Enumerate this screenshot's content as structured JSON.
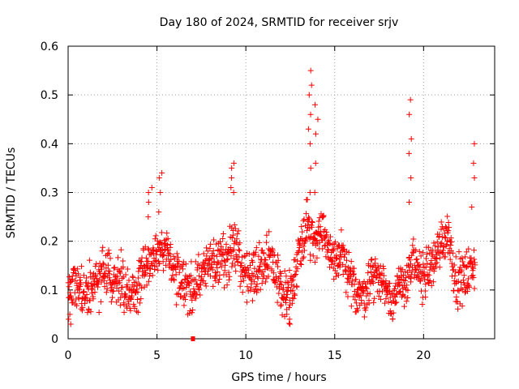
{
  "chart_data": {
    "type": "scatter",
    "title": "Day 180 of 2024, SRMTID for receiver srjv",
    "xlabel": "GPS time / hours",
    "ylabel": "SRMTID / TECUs",
    "xlim": [
      0,
      24
    ],
    "ylim": [
      0,
      0.6
    ],
    "xticks": [
      0,
      5,
      10,
      15,
      20
    ],
    "xtick_labels": [
      "0",
      "5",
      "10",
      "15",
      "20"
    ],
    "yticks": [
      0,
      0.1,
      0.2,
      0.3,
      0.4,
      0.5,
      0.6
    ],
    "ytick_labels": [
      "0",
      "0.1",
      "0.2",
      "0.3",
      "0.4",
      "0.5",
      "0.6"
    ],
    "grid": true,
    "marker": "+",
    "color": "#ff0000",
    "series": [
      {
        "name": "SRMTID",
        "profile_x": [
          0.0,
          0.3,
          0.8,
          1.2,
          1.6,
          2.0,
          2.5,
          3.0,
          3.4,
          3.8,
          4.2,
          4.6,
          5.0,
          5.4,
          5.8,
          6.2,
          6.6,
          7.0,
          7.4,
          7.8,
          8.2,
          8.6,
          9.0,
          9.4,
          9.8,
          10.2,
          10.6,
          11.0,
          11.4,
          11.8,
          12.2,
          12.6,
          13.0,
          13.4,
          13.8,
          14.2,
          14.6,
          15.0,
          15.4,
          15.8,
          16.2,
          16.6,
          17.0,
          17.4,
          17.8,
          18.2,
          18.6,
          19.0,
          19.4,
          19.8,
          20.2,
          20.6,
          21.0,
          21.4,
          21.8,
          22.2,
          22.6,
          22.9
        ],
        "profile_y": [
          0.1,
          0.11,
          0.1,
          0.1,
          0.11,
          0.14,
          0.13,
          0.12,
          0.08,
          0.1,
          0.14,
          0.16,
          0.17,
          0.18,
          0.15,
          0.12,
          0.11,
          0.1,
          0.13,
          0.15,
          0.16,
          0.16,
          0.17,
          0.2,
          0.14,
          0.13,
          0.14,
          0.16,
          0.16,
          0.12,
          0.09,
          0.1,
          0.18,
          0.24,
          0.2,
          0.22,
          0.19,
          0.16,
          0.17,
          0.12,
          0.1,
          0.09,
          0.12,
          0.13,
          0.11,
          0.08,
          0.1,
          0.12,
          0.15,
          0.13,
          0.14,
          0.16,
          0.2,
          0.22,
          0.12,
          0.12,
          0.14,
          0.15
        ],
        "spread": 0.045,
        "n_points": 1400,
        "x_range": [
          0,
          22.9
        ],
        "spikes": [
          {
            "x": 0.1,
            "values": [
              0.03,
              0.04,
              0.05,
              0.02
            ]
          },
          {
            "x": 4.6,
            "values": [
              0.25,
              0.28,
              0.3,
              0.31
            ]
          },
          {
            "x": 5.2,
            "values": [
              0.26,
              0.3,
              0.33,
              0.34
            ]
          },
          {
            "x": 9.2,
            "values": [
              0.33,
              0.35,
              0.36,
              0.31,
              0.3
            ]
          },
          {
            "x": 12.4,
            "values": [
              0.03,
              0.04,
              0.05,
              0.06
            ]
          },
          {
            "x": 13.6,
            "values": [
              0.3,
              0.35,
              0.4,
              0.43,
              0.46,
              0.5,
              0.52,
              0.55
            ]
          },
          {
            "x": 14.0,
            "values": [
              0.3,
              0.36,
              0.42,
              0.45,
              0.48
            ]
          },
          {
            "x": 19.2,
            "values": [
              0.28,
              0.33,
              0.38,
              0.41,
              0.46,
              0.49
            ]
          },
          {
            "x": 22.8,
            "values": [
              0.27,
              0.33,
              0.36,
              0.4
            ]
          }
        ],
        "outliers": [
          {
            "x": 7.05,
            "y": 0.0
          },
          {
            "x": 7.0,
            "y": 0.0
          }
        ]
      }
    ]
  }
}
